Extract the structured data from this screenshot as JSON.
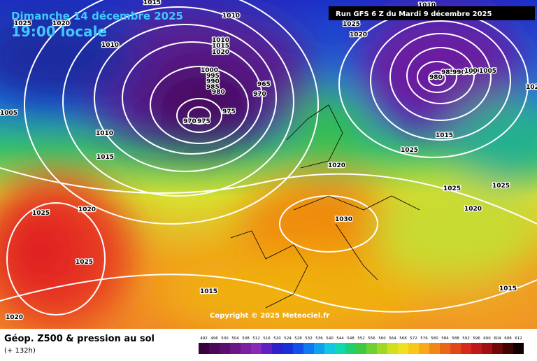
{
  "header": {
    "date": "Dimanche 14 décembre 2025",
    "time": "19:00 locale",
    "run": "Run GFS 6 Z du Mardi 9 décembre 2025"
  },
  "isobar_labels": [
    "1015",
    "1010",
    "1025",
    "1020",
    "1010",
    "1010",
    "1015",
    "1020",
    "1000",
    "995",
    "990",
    "985",
    "980",
    "965",
    "970",
    "975",
    "970",
    "975",
    "1005",
    "1010",
    "1015",
    "1025",
    "1020",
    "1025",
    "1020",
    "1015",
    "1030",
    "1020",
    "1025",
    "1020",
    "1010",
    "980",
    "985",
    "990",
    "995",
    "1000",
    "1005",
    "1015",
    "1025",
    "1025",
    "1025",
    "1020",
    "1015",
    "102"
  ],
  "copyright": "Copyright © 2025 Meteociel.fr",
  "footer": {
    "title": "Géop. Z500 & pression au sol",
    "lead": "(+ 132h)"
  },
  "scale": [
    "492",
    "496",
    "500",
    "504",
    "508",
    "512",
    "516",
    "520",
    "524",
    "528",
    "532",
    "536",
    "540",
    "544",
    "548",
    "552",
    "556",
    "560",
    "564",
    "568",
    "572",
    "576",
    "580",
    "584",
    "588",
    "592",
    "596",
    "600",
    "604",
    "608",
    "612"
  ]
}
